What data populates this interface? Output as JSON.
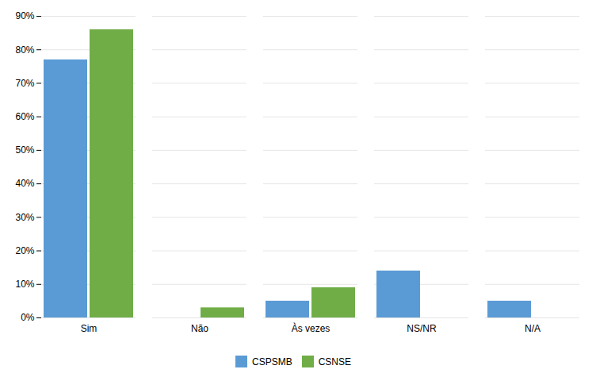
{
  "chart_data": {
    "type": "bar",
    "categories": [
      "Sim",
      "Não",
      "Às vezes",
      "NS/NR",
      "N/A"
    ],
    "series": [
      {
        "name": "CSPSMB",
        "color": "#5B9BD5",
        "values": [
          77,
          0,
          5,
          14,
          5
        ]
      },
      {
        "name": "CSNSE",
        "color": "#70AD47",
        "values": [
          86,
          3,
          9,
          0,
          0
        ]
      }
    ],
    "ylim": [
      0,
      90
    ],
    "yticks": [
      {
        "value": 0,
        "label": "0%"
      },
      {
        "value": 10,
        "label": "10%"
      },
      {
        "value": 20,
        "label": "20%"
      },
      {
        "value": 30,
        "label": "30%"
      },
      {
        "value": 40,
        "label": "40%"
      },
      {
        "value": 50,
        "label": "50%"
      },
      {
        "value": 60,
        "label": "60%"
      },
      {
        "value": 70,
        "label": "70%"
      },
      {
        "value": 80,
        "label": "80%"
      },
      {
        "value": 90,
        "label": "90%"
      }
    ],
    "grid": true,
    "legend": "bottom"
  }
}
